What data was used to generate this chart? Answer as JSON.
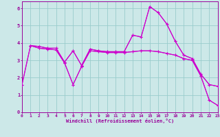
{
  "bg_color": "#cce8e8",
  "grid_color": "#99cccc",
  "line_color": "#cc00cc",
  "spine_color": "#990099",
  "tick_color": "#990099",
  "xlabel": "Windchill (Refroidissement éolien,°C)",
  "xlim": [
    0,
    23
  ],
  "ylim": [
    0,
    6.4
  ],
  "xticks": [
    0,
    1,
    2,
    3,
    4,
    5,
    6,
    7,
    8,
    9,
    10,
    11,
    12,
    13,
    14,
    15,
    16,
    17,
    18,
    19,
    20,
    21,
    22,
    23
  ],
  "yticks": [
    0,
    1,
    2,
    3,
    4,
    5,
    6
  ],
  "line1_x": [
    0,
    1,
    2,
    3,
    4,
    5,
    6,
    7,
    8,
    9,
    10,
    11,
    12,
    13,
    14,
    15,
    16,
    17,
    18,
    19,
    20,
    21,
    22,
    23
  ],
  "line1_y": [
    1.6,
    3.85,
    3.8,
    3.7,
    3.7,
    2.9,
    3.55,
    2.7,
    3.65,
    3.55,
    3.5,
    3.5,
    3.5,
    4.45,
    4.35,
    6.1,
    5.75,
    5.1,
    4.1,
    3.3,
    3.1,
    2.2,
    1.6,
    1.5
  ],
  "line2_x": [
    0,
    1,
    2,
    3,
    4,
    5,
    6,
    7,
    8,
    9,
    10,
    11,
    12,
    13,
    14,
    15,
    16,
    17,
    18,
    19,
    20,
    21,
    22,
    23
  ],
  "line2_y": [
    1.6,
    3.85,
    3.7,
    3.65,
    3.6,
    2.85,
    1.6,
    2.65,
    3.55,
    3.5,
    3.45,
    3.45,
    3.45,
    3.5,
    3.55,
    3.55,
    3.5,
    3.4,
    3.3,
    3.1,
    3.0,
    2.1,
    0.7,
    0.4
  ],
  "line3_x": [
    1,
    2,
    3,
    4,
    5,
    6,
    7,
    8,
    9,
    10,
    11,
    12,
    13,
    14,
    15,
    16,
    17,
    18,
    19,
    20,
    21,
    22,
    23
  ],
  "line3_y": [
    3.85,
    3.8,
    3.7,
    3.7,
    2.9,
    3.55,
    2.7,
    3.65,
    3.55,
    3.5,
    3.5,
    3.5,
    4.45,
    4.35,
    6.1,
    5.75,
    5.1,
    4.1,
    3.3,
    3.1,
    2.2,
    1.6,
    1.5
  ],
  "line4_x": [
    1,
    2,
    3,
    4,
    5,
    6,
    7,
    8,
    9,
    10,
    11,
    12,
    13,
    14,
    15,
    16,
    17,
    18,
    19,
    20,
    21,
    22,
    23
  ],
  "line4_y": [
    3.85,
    3.7,
    3.65,
    3.6,
    2.85,
    1.6,
    2.65,
    3.55,
    3.5,
    3.45,
    3.45,
    3.45,
    3.5,
    3.55,
    3.55,
    3.5,
    3.4,
    3.3,
    3.1,
    3.0,
    2.1,
    0.7,
    0.4
  ]
}
